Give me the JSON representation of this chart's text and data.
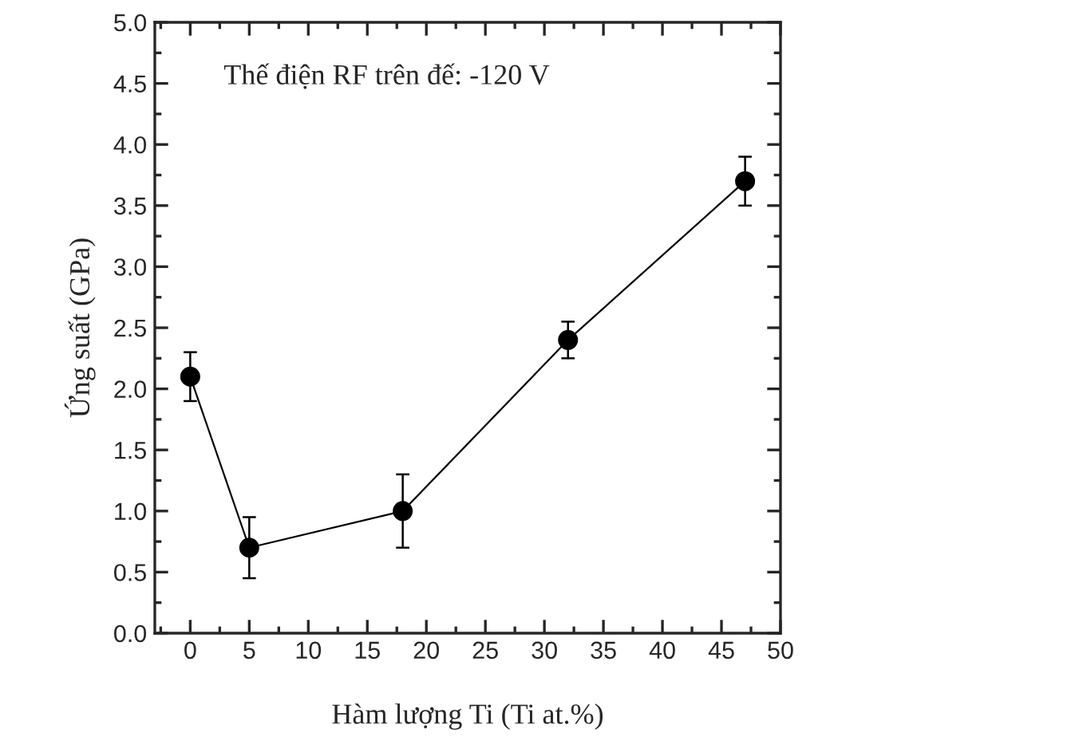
{
  "chart_data": {
    "type": "line",
    "xlabel": "Hàm lượng Ti (Ti at.%)",
    "ylabel": "Ứng suất (GPa)",
    "annotations": [
      "Thế điện RF trên đế: -120 V"
    ],
    "x": [
      0,
      5,
      18,
      32,
      47
    ],
    "series": [
      {
        "color": "#000000",
        "values": [
          2.1,
          0.7,
          1.0,
          2.4,
          3.7
        ],
        "errors": [
          0.2,
          0.25,
          0.3,
          0.15,
          0.2
        ]
      }
    ],
    "xlim": [
      -3,
      50
    ],
    "xticks": [
      0,
      5,
      10,
      15,
      20,
      25,
      30,
      35,
      40,
      45,
      50
    ],
    "ylim": [
      0,
      5
    ],
    "yticks": [
      {
        "value": 0,
        "label": "0.0"
      },
      {
        "value": 0.5,
        "label": "0.5"
      },
      {
        "value": 1,
        "label": "1.0"
      },
      {
        "value": 1.5,
        "label": "1.5"
      },
      {
        "value": 2,
        "label": "2.0"
      },
      {
        "value": 2.5,
        "label": "2.5"
      },
      {
        "value": 3,
        "label": "3.0"
      },
      {
        "value": 3.5,
        "label": "3.5"
      },
      {
        "value": 4,
        "label": "4.0"
      },
      {
        "value": 4.5,
        "label": "4.5"
      },
      {
        "value": 5,
        "label": "5.0"
      }
    ],
    "marker": "circle",
    "line_style": "solid",
    "grid": false,
    "legend": false
  }
}
